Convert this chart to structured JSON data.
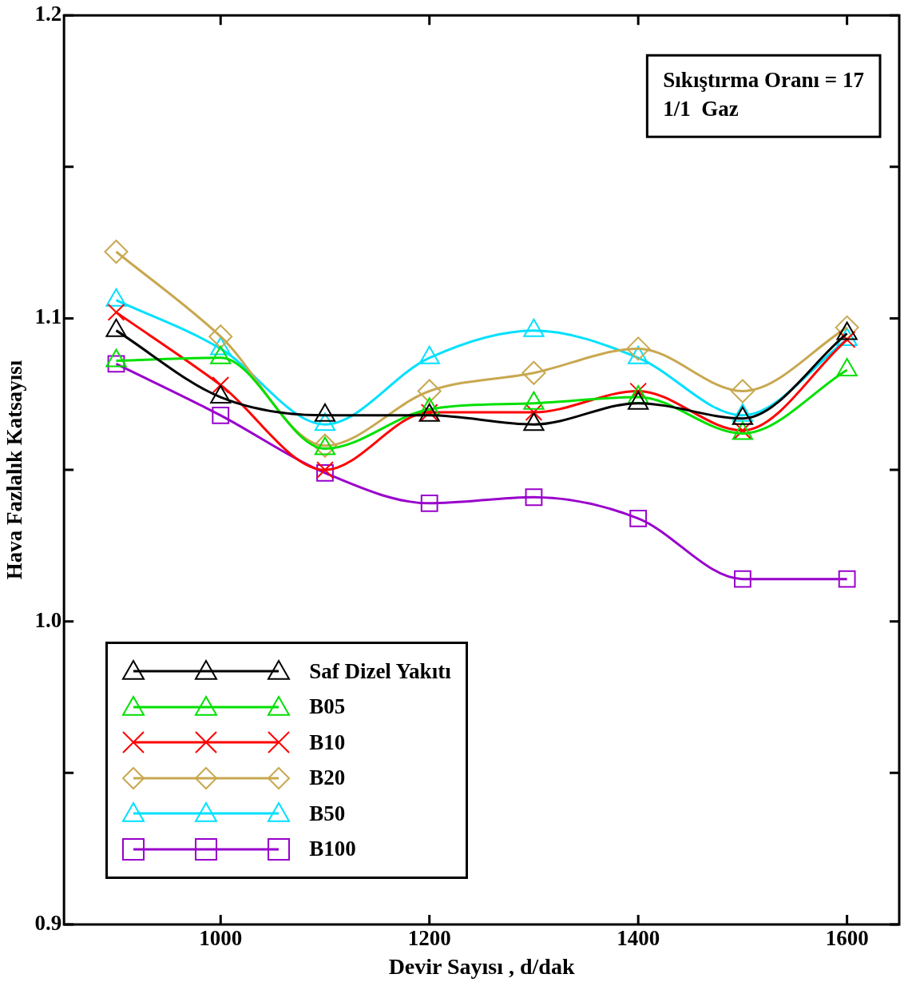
{
  "chart_data": {
    "type": "line",
    "xlabel": "Devir Sayısı , d/dak",
    "ylabel": "Hava Fazlalık Katsayısı",
    "annotations": [
      "Sıkıştırma Oranı = 17",
      "1/1  Gaz"
    ],
    "x": [
      900,
      1000,
      1100,
      1200,
      1300,
      1400,
      1500,
      1600
    ],
    "xlim": [
      850,
      1650
    ],
    "xticks": [
      1000,
      1200,
      1400,
      1600
    ],
    "ylim": [
      0.9,
      1.2
    ],
    "yticks": [
      {
        "value": 0.9,
        "label": "0.9"
      },
      {
        "value": 0.95,
        "label": null
      },
      {
        "value": 1.0,
        "label": "1.0"
      },
      {
        "value": 1.05,
        "label": null
      },
      {
        "value": 1.1,
        "label": "1.1"
      },
      {
        "value": 1.15,
        "label": null
      },
      {
        "value": 1.2,
        "label": "1.2"
      }
    ],
    "grid": false,
    "legend": "bottom left",
    "line_style": "solid",
    "series": [
      {
        "name": "Saf Dizel Yakıtı",
        "color": "#000000",
        "marker": "triangle",
        "values": [
          1.096,
          1.074,
          1.068,
          1.068,
          1.065,
          1.072,
          1.067,
          1.095
        ]
      },
      {
        "name": "B05",
        "color": "#00e000",
        "marker": "triangle",
        "values": [
          1.086,
          1.087,
          1.057,
          1.07,
          1.072,
          1.074,
          1.062,
          1.083
        ]
      },
      {
        "name": "B10",
        "color": "#ff0000",
        "marker": "cross",
        "values": [
          1.102,
          1.078,
          1.05,
          1.069,
          1.069,
          1.076,
          1.063,
          1.093
        ]
      },
      {
        "name": "B20",
        "color": "#c8a850",
        "marker": "diamond",
        "values": [
          1.122,
          1.094,
          1.058,
          1.076,
          1.082,
          1.09,
          1.076,
          1.097
        ]
      },
      {
        "name": "B50",
        "color": "#00e0ff",
        "marker": "triangle",
        "values": [
          1.106,
          1.09,
          1.065,
          1.087,
          1.096,
          1.087,
          1.068,
          1.093
        ]
      },
      {
        "name": "B100",
        "color": "#9900cc",
        "marker": "square",
        "values": [
          1.085,
          1.068,
          1.049,
          1.039,
          1.041,
          1.034,
          1.014,
          1.014
        ]
      }
    ]
  }
}
